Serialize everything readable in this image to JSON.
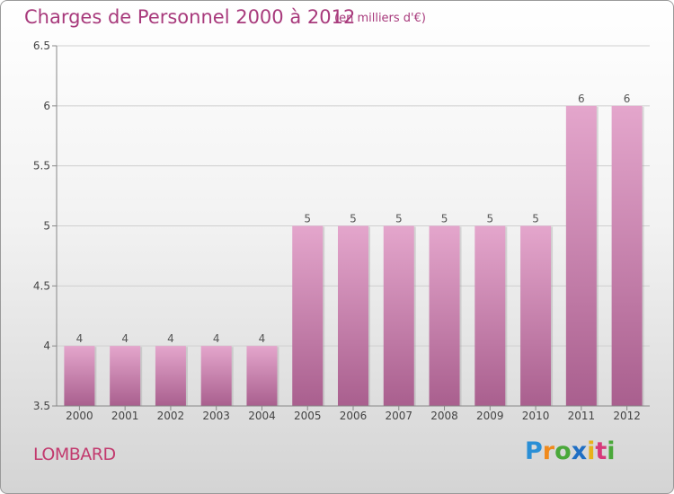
{
  "header": {
    "title": "Charges de Personnel 2000 à 2012",
    "subtitle": "(en milliers d'€)"
  },
  "footer": {
    "commune": "LOMBARD",
    "logo_text": "Proxiti",
    "logo_letters": [
      {
        "ch": "P",
        "color": "#2a8fd6"
      },
      {
        "ch": "r",
        "color": "#f08a1c"
      },
      {
        "ch": "o",
        "color": "#4aa83a"
      },
      {
        "ch": "x",
        "color": "#1f6fc4"
      },
      {
        "ch": "i",
        "color": "#e8b21a"
      },
      {
        "ch": "t",
        "color": "#d63a7a"
      },
      {
        "ch": "i",
        "color": "#4aa83a"
      }
    ]
  },
  "colors": {
    "bar_top": "#e4a6cc",
    "bar_bottom": "#a95f8e",
    "axis": "#888888",
    "grid": "#cfcfcf"
  },
  "chart_data": {
    "type": "bar",
    "title": "Charges de Personnel 2000 à 2012",
    "subtitle": "(en milliers d'€)",
    "categories": [
      "2000",
      "2001",
      "2002",
      "2003",
      "2004",
      "2005",
      "2006",
      "2007",
      "2008",
      "2009",
      "2010",
      "2011",
      "2012"
    ],
    "values": [
      4,
      4,
      4,
      4,
      4,
      5,
      5,
      5,
      5,
      5,
      5,
      6,
      6
    ],
    "value_labels": [
      "4",
      "4",
      "4",
      "4",
      "4",
      "5",
      "5",
      "5",
      "5",
      "5",
      "5",
      "6",
      "6"
    ],
    "ylim": [
      3.5,
      6.5
    ],
    "yticks": [
      3.5,
      4,
      4.5,
      5,
      5.5,
      6,
      6.5
    ],
    "ytick_labels": [
      "3.5",
      "4",
      "4.5",
      "5",
      "5.5",
      "6",
      "6.5"
    ],
    "grid": true,
    "xlabel": "",
    "ylabel": ""
  }
}
